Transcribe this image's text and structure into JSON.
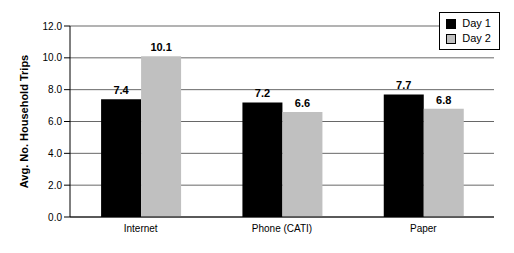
{
  "chart_data": {
    "type": "bar",
    "y_label": "Avg. No. Household Trips",
    "categories": [
      "Internet",
      "Phone (CATI)",
      "Paper"
    ],
    "series": [
      {
        "name": "Day 1",
        "color": "#000000",
        "values": [
          7.4,
          7.2,
          7.7
        ]
      },
      {
        "name": "Day 2",
        "color": "#c0c0c0",
        "values": [
          10.1,
          6.6,
          6.8
        ]
      }
    ],
    "ylim": [
      0,
      12
    ],
    "yticks": [
      {
        "value": 0,
        "label": "0.0"
      },
      {
        "value": 2,
        "label": "2.0"
      },
      {
        "value": 4,
        "label": "4.0"
      },
      {
        "value": 6,
        "label": "6.0"
      },
      {
        "value": 8,
        "label": "8.0"
      },
      {
        "value": 10,
        "label": "10.0"
      },
      {
        "value": 12,
        "label": "12.0"
      }
    ],
    "grid": true,
    "legend": "upper right",
    "data_labels": true
  }
}
